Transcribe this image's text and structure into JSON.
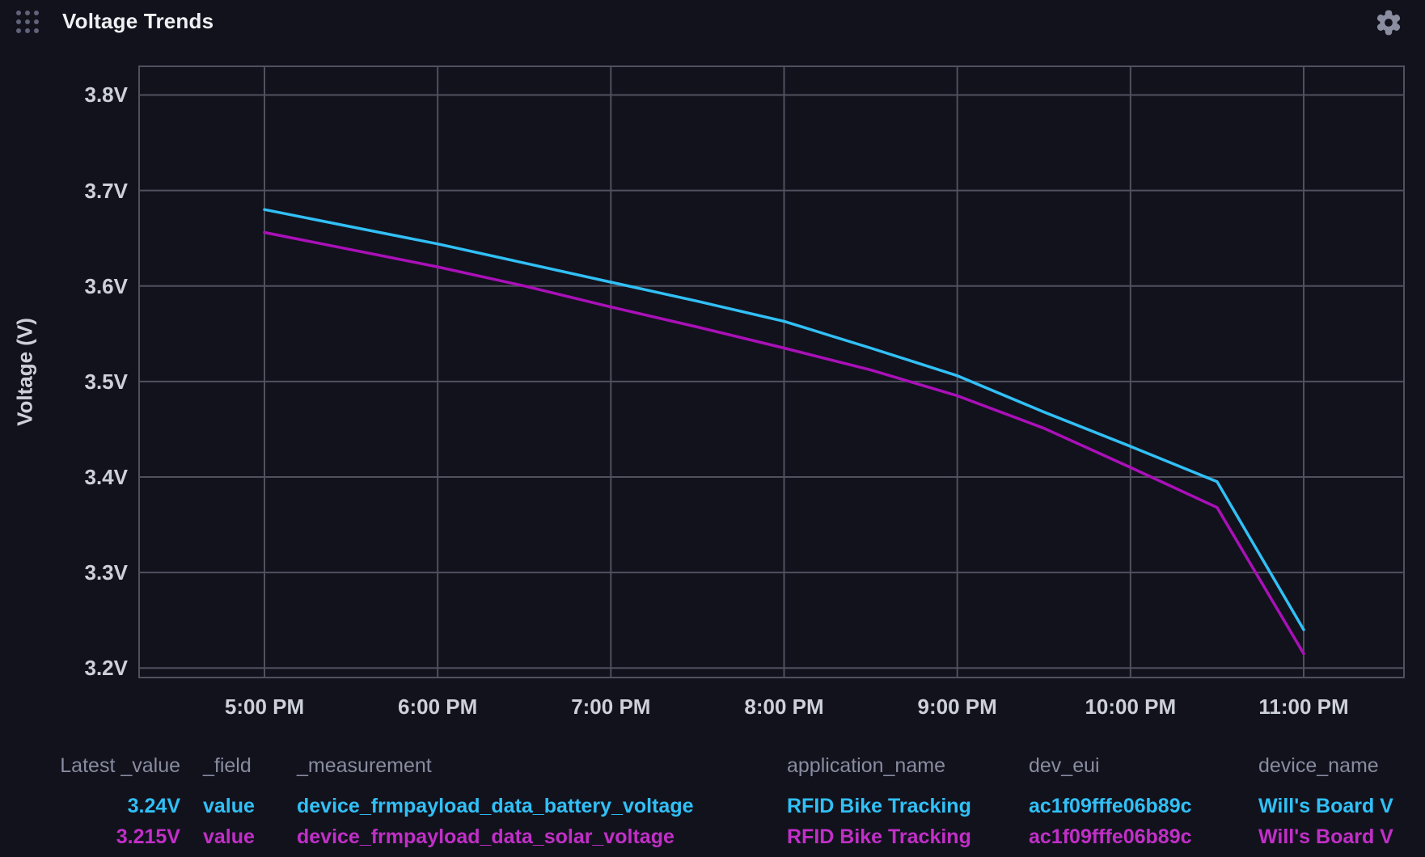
{
  "header": {
    "title": "Voltage Trends"
  },
  "icons": {
    "drag_handle": "grid-dots-icon",
    "settings": "gear-icon"
  },
  "colors": {
    "background": "#12121D",
    "grid": "#50505E",
    "tick_text": "#CDD0D9",
    "title_text": "#F0F0F4",
    "legend_header_text": "#888CA0",
    "battery_series": "#31C0F6",
    "solar_series": "#AA10B8",
    "solar_legend_text": "#C12FC7"
  },
  "chart_data": {
    "type": "line",
    "title": "Voltage Trends",
    "xlabel": "",
    "ylabel": "Voltage (V)",
    "grid": true,
    "legend_position": "bottom-table",
    "x_categories": [
      "5:00 PM",
      "5:30 PM",
      "6:00 PM",
      "6:30 PM",
      "7:00 PM",
      "7:30 PM",
      "8:00 PM",
      "8:30 PM",
      "9:00 PM",
      "9:30 PM",
      "10:00 PM",
      "10:30 PM",
      "11:00 PM"
    ],
    "x_ticks": [
      "5:00 PM",
      "6:00 PM",
      "7:00 PM",
      "8:00 PM",
      "9:00 PM",
      "10:00 PM",
      "11:00 PM"
    ],
    "y_ticks": [
      "3.8V",
      "3.7V",
      "3.6V",
      "3.5V",
      "3.4V",
      "3.3V",
      "3.2V"
    ],
    "y_tick_values": [
      3.8,
      3.7,
      3.6,
      3.5,
      3.4,
      3.3,
      3.2
    ],
    "ylim": [
      3.19,
      3.83
    ],
    "series": [
      {
        "name": "device_frmpayload_data_battery_voltage",
        "color": "#31C0F6",
        "values": [
          3.68,
          3.662,
          3.644,
          3.624,
          3.604,
          3.584,
          3.563,
          3.535,
          3.506,
          3.468,
          3.432,
          3.395,
          3.24
        ]
      },
      {
        "name": "device_frmpayload_data_solar_voltage",
        "color": "#AA10B8",
        "values": [
          3.656,
          3.638,
          3.62,
          3.6,
          3.578,
          3.557,
          3.535,
          3.512,
          3.485,
          3.451,
          3.41,
          3.368,
          3.215
        ]
      }
    ]
  },
  "legend": {
    "columns": [
      {
        "key": "latest_value",
        "label": "Latest _value"
      },
      {
        "key": "field",
        "label": "_field"
      },
      {
        "key": "measurement",
        "label": "_measurement"
      },
      {
        "key": "application_name",
        "label": "application_name"
      },
      {
        "key": "dev_eui",
        "label": "dev_eui"
      },
      {
        "key": "device_name",
        "label": "device_name"
      }
    ],
    "rows": [
      {
        "text_color": "#31C0F6",
        "latest_value": "3.24V",
        "field": "value",
        "measurement": "device_frmpayload_data_battery_voltage",
        "application_name": "RFID Bike Tracking",
        "dev_eui": "ac1f09fffe06b89c",
        "device_name": "Will's Board V"
      },
      {
        "text_color": "#C12FC7",
        "latest_value": "3.215V",
        "field": "value",
        "measurement": "device_frmpayload_data_solar_voltage",
        "application_name": "RFID Bike Tracking",
        "dev_eui": "ac1f09fffe06b89c",
        "device_name": "Will's Board V"
      }
    ]
  }
}
